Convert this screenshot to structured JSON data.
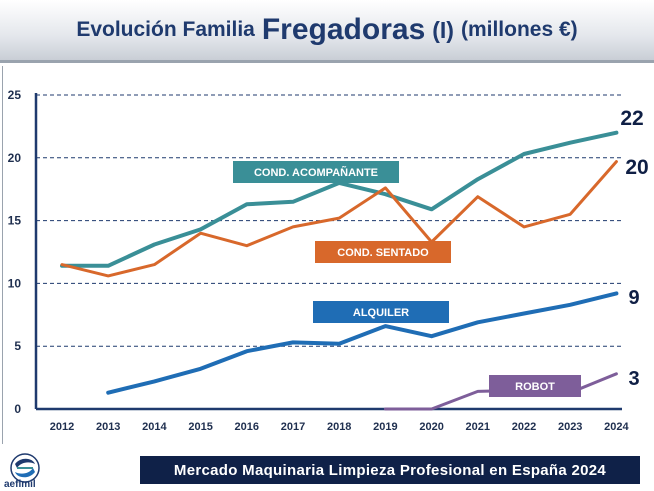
{
  "title": {
    "prefix": "Evolución Familia",
    "main": "Fregadoras",
    "numeral": "(I)",
    "unit": "(millones €)"
  },
  "footer": {
    "text": "Mercado Maquinaria Limpieza Profesional en España 2024",
    "logo_label": "aefimil"
  },
  "chart_data": {
    "type": "line",
    "categories": [
      "2012",
      "2013",
      "2014",
      "2015",
      "2016",
      "2017",
      "2018",
      "2019",
      "2020",
      "2021",
      "2022",
      "2023",
      "2024"
    ],
    "ylim": [
      0,
      25
    ],
    "yticks": [
      0,
      5,
      10,
      15,
      20,
      25
    ],
    "grid": true,
    "series": [
      {
        "name": "COND. ACOMPAÑANTE",
        "color": "#3a8f97",
        "values": [
          11.4,
          11.4,
          13.1,
          14.3,
          16.3,
          16.5,
          18.0,
          17.1,
          15.9,
          18.3,
          20.3,
          21.2,
          22.0
        ],
        "end_label": "22"
      },
      {
        "name": "COND. SENTADO",
        "color": "#d8682b",
        "values": [
          11.5,
          10.6,
          11.5,
          14.0,
          13.0,
          14.5,
          15.2,
          17.6,
          13.3,
          16.9,
          14.5,
          15.5,
          19.7
        ],
        "end_label": "20"
      },
      {
        "name": "ALQUILER",
        "color": "#1f6db5",
        "values": [
          null,
          1.3,
          2.2,
          3.2,
          4.6,
          5.3,
          5.2,
          6.6,
          5.8,
          6.9,
          7.6,
          8.3,
          9.2
        ],
        "end_label": "9"
      },
      {
        "name": "ROBOT",
        "color": "#7e5e9a",
        "values": [
          null,
          null,
          null,
          null,
          null,
          null,
          null,
          0.0,
          0.0,
          1.4,
          1.5,
          1.3,
          2.8
        ],
        "end_label": "3"
      }
    ]
  }
}
